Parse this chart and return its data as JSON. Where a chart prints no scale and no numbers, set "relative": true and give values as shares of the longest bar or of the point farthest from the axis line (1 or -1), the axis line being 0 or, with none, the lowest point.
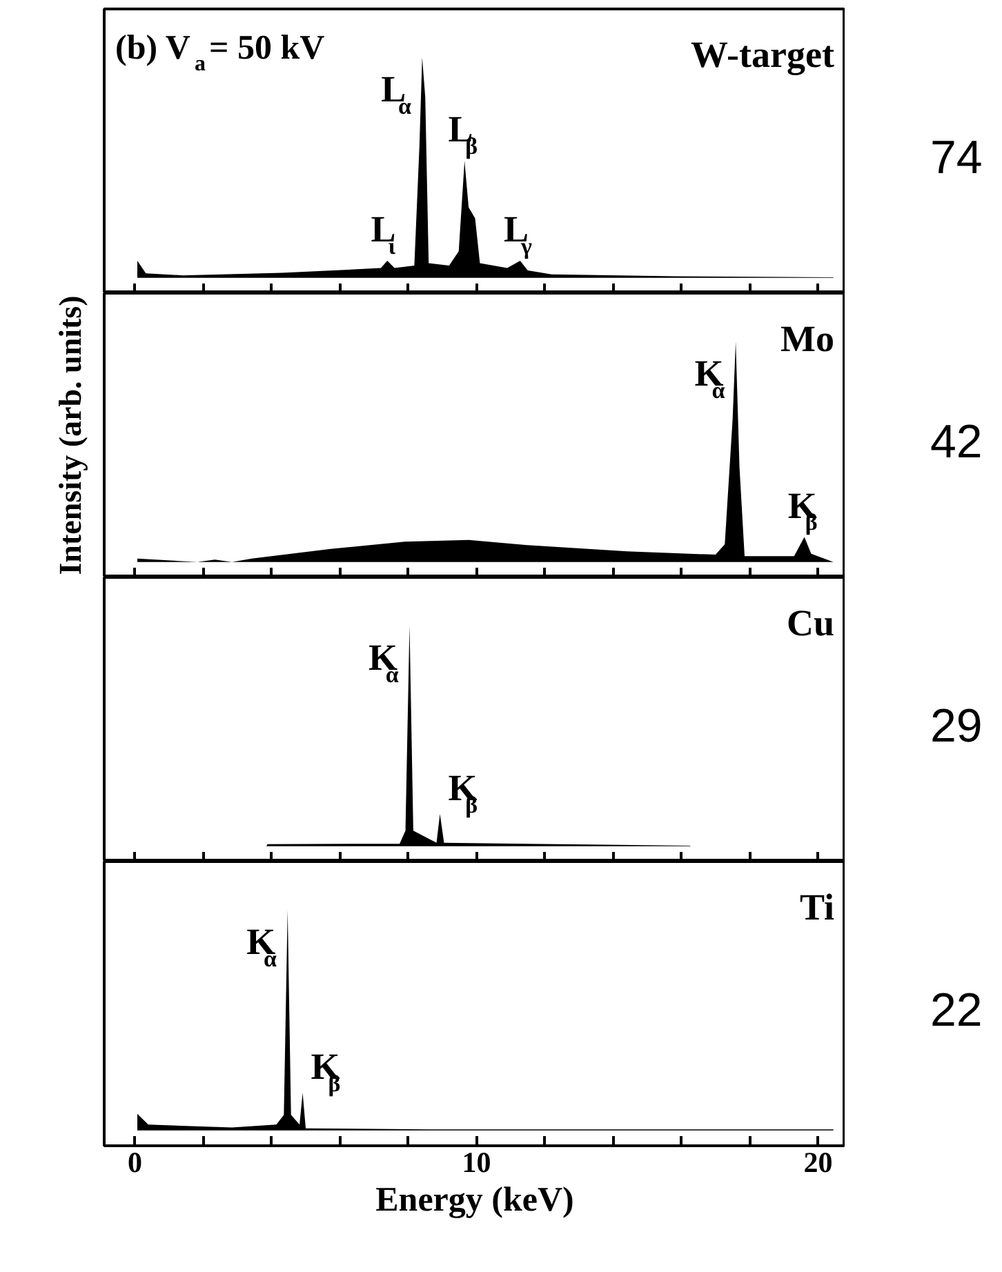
{
  "chart_data": [
    {
      "type": "area",
      "title": "W-target",
      "relative": true,
      "color": "#000000",
      "tick_labels": false,
      "xlim": [
        -0.9,
        20.8
      ],
      "xticks": [
        0,
        {
          "value": 2,
          "label": null
        },
        {
          "value": 4,
          "label": null
        },
        {
          "value": 6,
          "label": null
        },
        {
          "value": 8,
          "label": null
        },
        10,
        {
          "value": 12,
          "label": null
        },
        {
          "value": 14,
          "label": null
        },
        {
          "value": 16,
          "label": null
        },
        {
          "value": 18,
          "label": null
        },
        20
      ],
      "x": [
        0.07,
        0.32,
        1.4,
        4.3,
        7.2,
        7.39,
        7.6,
        8.18,
        8.33,
        8.41,
        8.5,
        8.6,
        9.2,
        9.48,
        9.65,
        9.77,
        9.96,
        10.1,
        10.9,
        11.28,
        11.5,
        12.2,
        15.8,
        20.45
      ],
      "values": [
        0.077,
        0.02,
        0.011,
        0.022,
        0.044,
        0.077,
        0.044,
        0.055,
        0.6,
        1.0,
        0.82,
        0.066,
        0.055,
        0.12,
        0.53,
        0.32,
        0.27,
        0.066,
        0.044,
        0.077,
        0.033,
        0.015,
        0.007,
        0.002
      ],
      "annotations": [
        "(b) V$_{a}$= 50 kV",
        {
          "text": "L$_{α}$",
          "x": 8.41,
          "y": 1.0
        },
        {
          "text": "L$_{β}$",
          "x": 9.65,
          "y": 0.53
        },
        {
          "text": "L$_{ι}$",
          "x": 7.39,
          "y": 0.077
        },
        {
          "text": "L$_{γ}$",
          "x": 11.28,
          "y": 0.077
        },
        "74"
      ]
    },
    {
      "type": "area",
      "title": "Mo",
      "relative": true,
      "color": "#000000",
      "tick_labels": false,
      "ylabel": "Intensity (arb. units)",
      "xlim": [
        -0.9,
        20.8
      ],
      "xticks": [
        0,
        {
          "value": 2,
          "label": null
        },
        {
          "value": 4,
          "label": null
        },
        {
          "value": 6,
          "label": null
        },
        {
          "value": 8,
          "label": null
        },
        10,
        {
          "value": 12,
          "label": null
        },
        {
          "value": 14,
          "label": null
        },
        {
          "value": 16,
          "label": null
        },
        {
          "value": 18,
          "label": null
        },
        20
      ],
      "x": [
        0.07,
        1.83,
        2.34,
        2.84,
        3.42,
        5.73,
        7.9,
        9.77,
        11.5,
        14.4,
        17.0,
        17.27,
        17.5,
        17.59,
        17.7,
        17.85,
        19.3,
        19.6,
        19.8,
        20.45
      ],
      "values": [
        0.015,
        0.0,
        0.011,
        0.0,
        0.015,
        0.059,
        0.092,
        0.1,
        0.076,
        0.048,
        0.033,
        0.08,
        0.65,
        1.0,
        0.43,
        0.026,
        0.026,
        0.113,
        0.037,
        0.0
      ],
      "annotations": [
        {
          "text": "K$_{α}$",
          "x": 17.59,
          "y": 1.0
        },
        {
          "text": "K$_{β}$",
          "x": 19.6,
          "y": 0.113
        },
        "42"
      ]
    },
    {
      "type": "area",
      "title": "Cu",
      "relative": true,
      "color": "#000000",
      "tick_labels": false,
      "xlim": [
        -0.9,
        20.8
      ],
      "xticks": [
        0,
        {
          "value": 2,
          "label": null
        },
        {
          "value": 4,
          "label": null
        },
        {
          "value": 6,
          "label": null
        },
        {
          "value": 8,
          "label": null
        },
        10,
        {
          "value": 12,
          "label": null
        },
        {
          "value": 14,
          "label": null
        },
        {
          "value": 16,
          "label": null
        },
        {
          "value": 18,
          "label": null
        },
        20
      ],
      "x": [
        3.85,
        3.88,
        7.75,
        7.92,
        8.04,
        8.15,
        8.83,
        8.93,
        9.05,
        13.67,
        16.26
      ],
      "values": [
        0.0,
        0.009,
        0.011,
        0.07,
        1.0,
        0.07,
        0.015,
        0.146,
        0.015,
        0.007,
        0.002
      ],
      "annotations": [
        {
          "text": "K$_{α}$",
          "x": 8.04,
          "y": 1.0
        },
        {
          "text": "K$_{β}$",
          "x": 8.93,
          "y": 0.146
        },
        "29"
      ]
    },
    {
      "type": "area",
      "title": "Ti",
      "relative": true,
      "color": "#000000",
      "tick_labels": "x",
      "xlabel": "Energy (keV)",
      "xlim": [
        -0.9,
        20.8
      ],
      "xticks": [
        0,
        {
          "value": 2,
          "label": null
        },
        {
          "value": 4,
          "label": null
        },
        {
          "value": 6,
          "label": null
        },
        {
          "value": 8,
          "label": null
        },
        10,
        {
          "value": 12,
          "label": null
        },
        {
          "value": 14,
          "label": null
        },
        {
          "value": 16,
          "label": null
        },
        {
          "value": 18,
          "label": null
        },
        20
      ],
      "x": [
        0.07,
        0.39,
        2.84,
        4.14,
        4.36,
        4.47,
        4.57,
        4.82,
        4.91,
        5.0,
        8.6,
        20.45
      ],
      "values": [
        0.075,
        0.026,
        0.013,
        0.026,
        0.07,
        1.0,
        0.07,
        0.026,
        0.17,
        0.009,
        0.004,
        0.004
      ],
      "annotations": [
        {
          "text": "K$_{α}$",
          "x": 4.47,
          "y": 1.0
        },
        {
          "text": "K$_{β}$",
          "x": 4.91,
          "y": 0.17
        },
        "22"
      ]
    }
  ]
}
